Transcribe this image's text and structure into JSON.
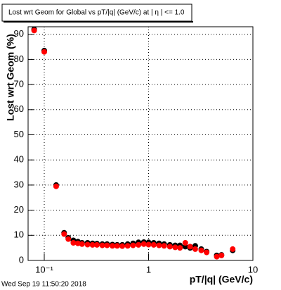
{
  "chart_data": {
    "type": "scatter",
    "title": "Lost wrt Geom for Global vs pT/|q| (GeV/c) at |  η | <= 1.0",
    "xlabel": "pT/|q| (GeV/c)",
    "ylabel": "Lost wrt Geom (%)",
    "footer": "Wed Sep 19 11:50:20 2018",
    "xlog": true,
    "grid": true,
    "xlim": [
      0.07,
      10
    ],
    "ylim": [
      0,
      93
    ],
    "xticks": [
      {
        "value": 0.1,
        "label": "10⁻¹"
      },
      1,
      10
    ],
    "yticks": [
      0,
      10,
      20,
      30,
      40,
      50,
      60,
      70,
      80,
      90
    ],
    "x": [
      0.08,
      0.1,
      0.13,
      0.155,
      0.17,
      0.19,
      0.21,
      0.23,
      0.26,
      0.29,
      0.32,
      0.36,
      0.4,
      0.45,
      0.5,
      0.56,
      0.63,
      0.71,
      0.8,
      0.9,
      1.0,
      1.12,
      1.26,
      1.41,
      1.6,
      1.8,
      2.0,
      2.25,
      2.5,
      2.8,
      3.2,
      3.6,
      4.5,
      5.0,
      6.4
    ],
    "series": [
      {
        "color": "#000000",
        "values": [
          92,
          83.5,
          30,
          11,
          9,
          8,
          7.5,
          7,
          7,
          6.8,
          6.7,
          6.5,
          6.5,
          6.3,
          6.2,
          6.2,
          6.5,
          6.8,
          7.2,
          7.3,
          7.2,
          7,
          6.8,
          6.5,
          6.2,
          6,
          6,
          5.5,
          5,
          5.8,
          4.5,
          3.5,
          2,
          2.2,
          4
        ]
      },
      {
        "color": "#ff0000",
        "values": [
          91.5,
          83,
          29.5,
          10.5,
          8.5,
          7,
          6.8,
          6.5,
          6.3,
          6.2,
          6.2,
          6,
          6,
          5.8,
          5.8,
          5.7,
          5.8,
          6,
          6.2,
          6.5,
          6.3,
          6.2,
          6,
          5.8,
          5.5,
          5.2,
          5,
          7,
          5.5,
          4.5,
          4,
          3.2,
          1.5,
          2,
          4.5
        ]
      }
    ]
  }
}
